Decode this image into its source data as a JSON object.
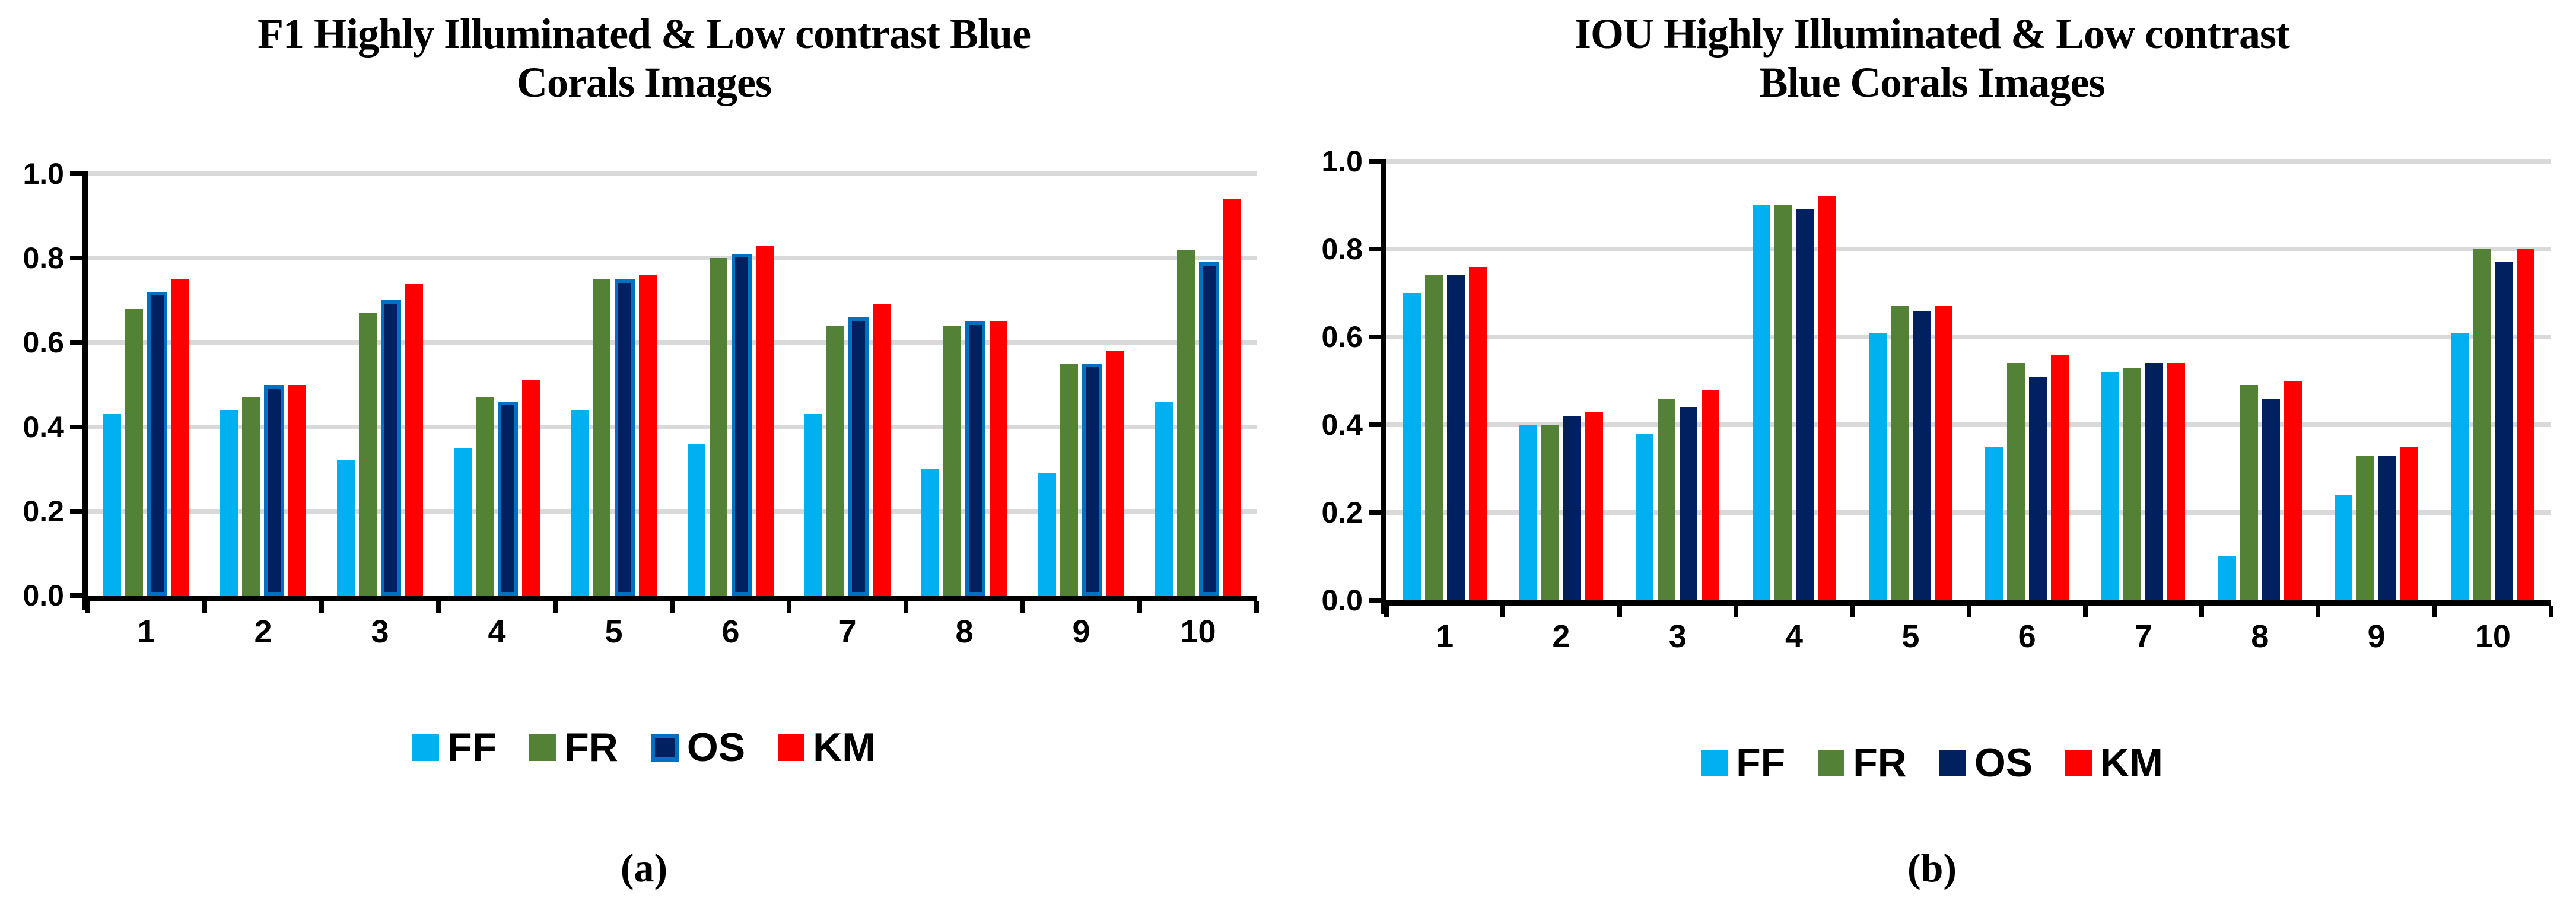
{
  "page": {
    "background": "#FFFFFF"
  },
  "chart_data": [
    {
      "id": "chart-a",
      "type": "bar",
      "title": "F1 Highly Illuminated & Low contrast Blue Corals Images",
      "title_lines": [
        "F1 Highly Illuminated & Low contrast Blue",
        "Corals Images"
      ],
      "caption": "(a)",
      "categories": [
        "1",
        "2",
        "3",
        "4",
        "5",
        "6",
        "7",
        "8",
        "9",
        "10"
      ],
      "series": [
        {
          "name": "FF",
          "color": "#00B0F0",
          "values": [
            0.43,
            0.44,
            0.32,
            0.35,
            0.44,
            0.36,
            0.43,
            0.3,
            0.29,
            0.46
          ]
        },
        {
          "name": "FR",
          "color": "#538135",
          "values": [
            0.68,
            0.47,
            0.67,
            0.47,
            0.75,
            0.8,
            0.64,
            0.64,
            0.55,
            0.82
          ]
        },
        {
          "name": "OS",
          "color": "#002060",
          "border_color": "#0070C0",
          "values": [
            0.72,
            0.5,
            0.7,
            0.46,
            0.75,
            0.81,
            0.66,
            0.65,
            0.55,
            0.79
          ]
        },
        {
          "name": "KM",
          "color": "#FF0000",
          "values": [
            0.75,
            0.5,
            0.74,
            0.51,
            0.76,
            0.83,
            0.69,
            0.65,
            0.58,
            0.94
          ]
        }
      ],
      "ylim": [
        0,
        1
      ],
      "ytick_labels": [
        "0.0",
        "0.2",
        "0.4",
        "0.6",
        "0.8",
        "1.0"
      ],
      "grid": true,
      "gridline_color": "#D9D9D9",
      "axis_color": "#000000",
      "legend_position": "bottom"
    },
    {
      "id": "chart-b",
      "type": "bar",
      "title": "IOU Highly Illuminated & Low contrast Blue Corals Images",
      "title_lines": [
        "IOU Highly Illuminated & Low contrast",
        "Blue Corals Images"
      ],
      "caption": "(b)",
      "categories": [
        "1",
        "2",
        "3",
        "4",
        "5",
        "6",
        "7",
        "8",
        "9",
        "10"
      ],
      "series": [
        {
          "name": "FF",
          "color": "#00B0F0",
          "values": [
            0.7,
            0.4,
            0.38,
            0.9,
            0.61,
            0.35,
            0.52,
            0.1,
            0.24,
            0.61
          ]
        },
        {
          "name": "FR",
          "color": "#538135",
          "values": [
            0.74,
            0.4,
            0.46,
            0.9,
            0.67,
            0.54,
            0.53,
            0.49,
            0.33,
            0.8
          ]
        },
        {
          "name": "OS",
          "color": "#002060",
          "values": [
            0.74,
            0.42,
            0.44,
            0.89,
            0.66,
            0.51,
            0.54,
            0.46,
            0.33,
            0.77
          ]
        },
        {
          "name": "KM",
          "color": "#FF0000",
          "values": [
            0.76,
            0.43,
            0.48,
            0.92,
            0.67,
            0.56,
            0.54,
            0.5,
            0.35,
            0.8
          ]
        }
      ],
      "ylim": [
        0,
        1
      ],
      "ytick_labels": [
        "0.0",
        "0.2",
        "0.4",
        "0.6",
        "0.8",
        "1.0"
      ],
      "grid": true,
      "gridline_color": "#D9D9D9",
      "axis_color": "#000000",
      "legend_position": "bottom"
    }
  ]
}
